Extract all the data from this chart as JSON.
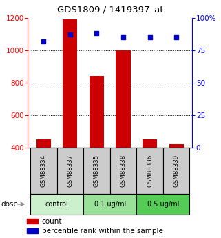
{
  "title": "GDS1809 / 1419397_at",
  "samples": [
    "GSM88334",
    "GSM88337",
    "GSM88335",
    "GSM88338",
    "GSM88336",
    "GSM88339"
  ],
  "counts": [
    450,
    1190,
    840,
    1000,
    450,
    420
  ],
  "percentiles": [
    82,
    87,
    88,
    85,
    85,
    85
  ],
  "groups": [
    {
      "label": "control",
      "start": 0,
      "end": 2,
      "color": "#ccf0cc"
    },
    {
      "label": "0.1 ug/ml",
      "start": 2,
      "end": 4,
      "color": "#99e099"
    },
    {
      "label": "0.5 ug/ml",
      "start": 4,
      "end": 6,
      "color": "#55cc55"
    }
  ],
  "ylim_left": [
    400,
    1200
  ],
  "ylim_right": [
    0,
    100
  ],
  "yticks_left": [
    400,
    600,
    800,
    1000,
    1200
  ],
  "yticks_right": [
    0,
    25,
    50,
    75,
    100
  ],
  "ytick_labels_right": [
    "0",
    "25",
    "50",
    "75",
    "100%"
  ],
  "bar_color": "#cc0000",
  "dot_color": "#0000cc",
  "bar_width": 0.55,
  "bar_bottom": 400,
  "label_count": "count",
  "label_percentile": "percentile rank within the sample",
  "dose_label": "dose",
  "grid_yticks": [
    600,
    800,
    1000
  ],
  "sample_box_color": "#cccccc",
  "bg_color": "#ffffff"
}
